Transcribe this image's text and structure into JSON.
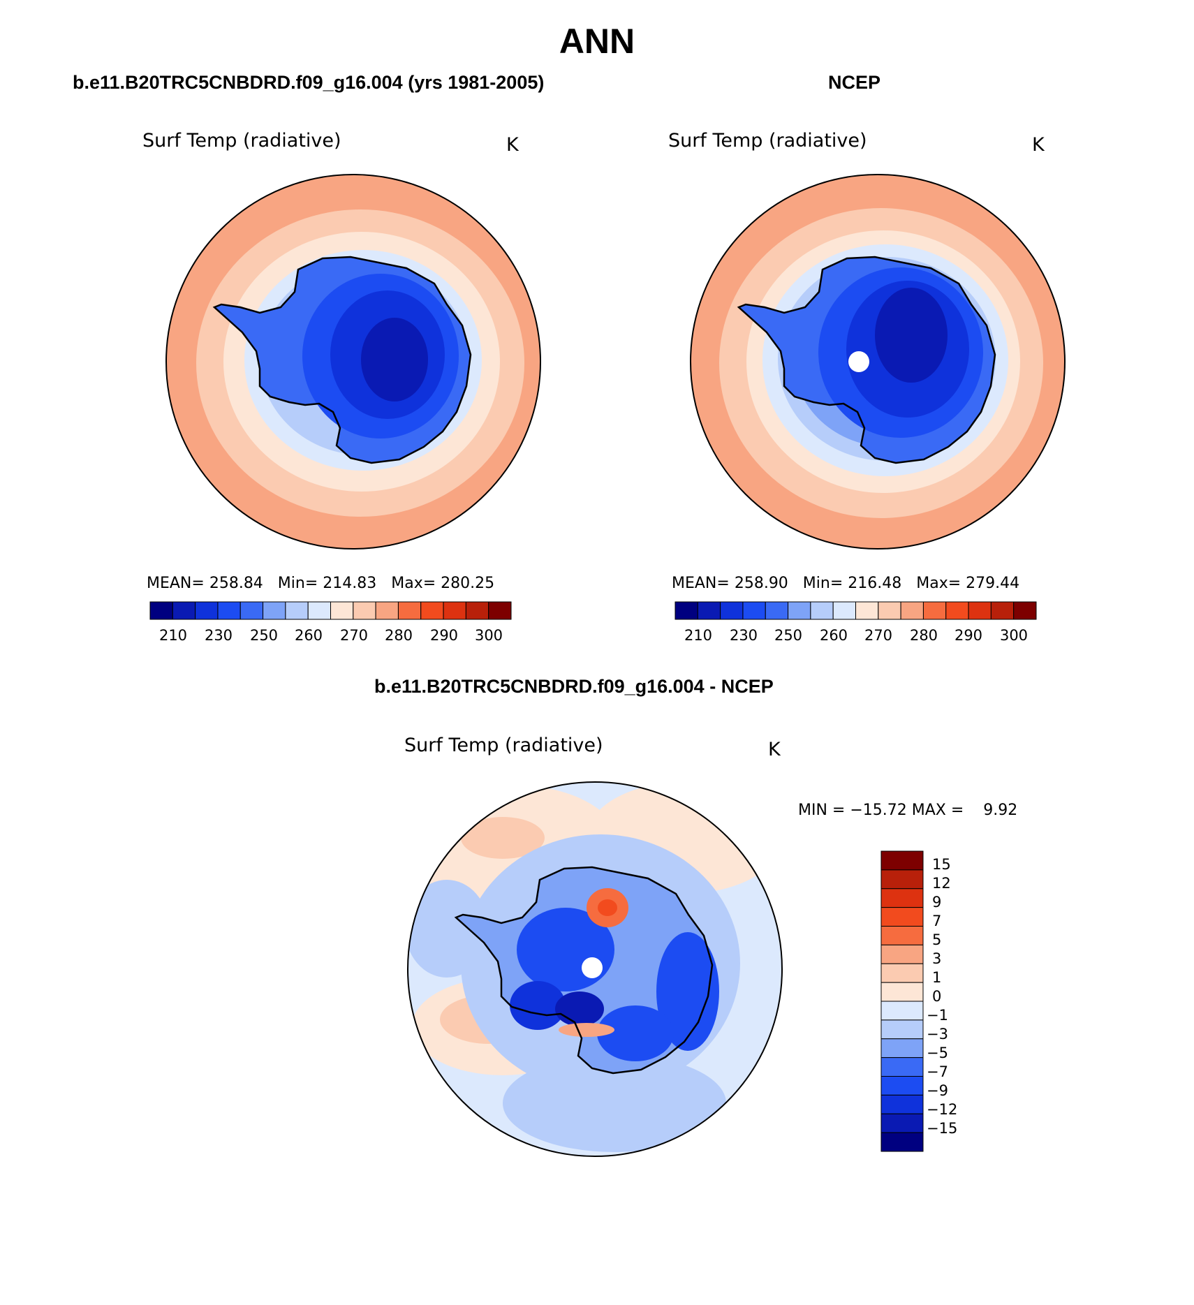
{
  "figure": {
    "title": "ANN",
    "difference_title": "b.e11.B20TRC5CNBDRD.f09_g16.004 - NCEP"
  },
  "panels": [
    {
      "case_title": "b.e11.B20TRC5CNBDRD.f09_g16.004 (yrs 1981-2005)",
      "variable": "Surf Temp (radiative)",
      "units": "K",
      "stats": {
        "mean_label": "MEAN=",
        "mean": "258.84",
        "min_label": "Min=",
        "min": "214.83",
        "max_label": "Max=",
        "max": "280.25"
      },
      "has_pole_hole": false
    },
    {
      "case_title": "NCEP",
      "variable": "Surf Temp (radiative)",
      "units": "K",
      "stats": {
        "mean_label": "MEAN=",
        "mean": "258.90",
        "min_label": "Min=",
        "min": "216.48",
        "max_label": "Max=",
        "max": "279.44"
      },
      "has_pole_hole": true
    }
  ],
  "difference_panel": {
    "variable": "Surf Temp (radiative)",
    "units": "K",
    "range_text": "MIN = −15.72 MAX =    9.92",
    "has_pole_hole": true
  },
  "colorbar_main": {
    "tick_labels": [
      "210",
      "230",
      "250",
      "260",
      "270",
      "280",
      "290",
      "300"
    ],
    "colors": [
      "#000080",
      "#0a1ab3",
      "#0f32db",
      "#1c4cf2",
      "#3a6af5",
      "#7ea3f7",
      "#b6cdfa",
      "#dce9fd",
      "#fde6d6",
      "#fbcbb1",
      "#f8a582",
      "#f66c3f",
      "#f24b1e",
      "#dd3210",
      "#b8200a",
      "#7d0000"
    ]
  },
  "colorbar_diff": {
    "tick_labels": [
      "15",
      "12",
      "9",
      "7",
      "5",
      "3",
      "1",
      "0",
      "−1",
      "−3",
      "−5",
      "−7",
      "−9",
      "−12",
      "−15"
    ],
    "colors_top_to_bottom": [
      "#7d0000",
      "#b8200a",
      "#dd3210",
      "#f24b1e",
      "#f66c3f",
      "#f8a582",
      "#fbcbb1",
      "#fde6d6",
      "#dce9fd",
      "#b6cdfa",
      "#7ea3f7",
      "#3a6af5",
      "#1c4cf2",
      "#0f32db",
      "#0a1ab3",
      "#000080"
    ]
  }
}
